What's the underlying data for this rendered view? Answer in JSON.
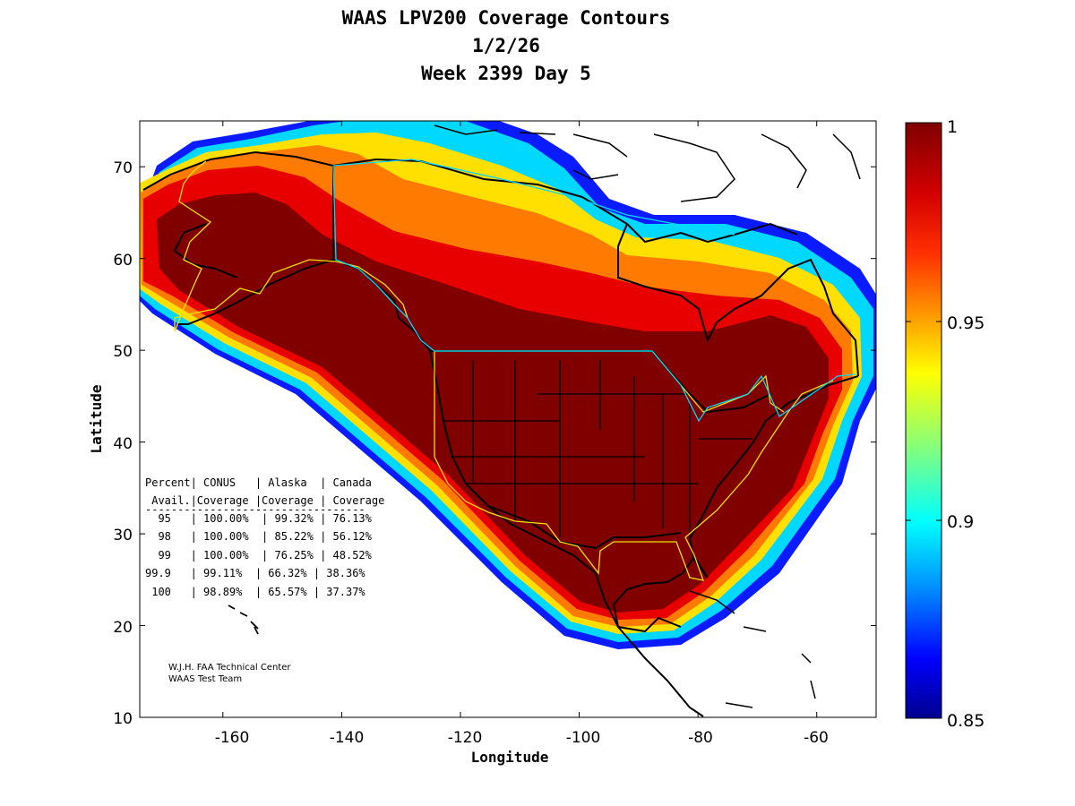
{
  "title": {
    "line1": "WAAS LPV200 Coverage Contours",
    "line2": "1/2/26",
    "line3": "Week 2399 Day 5"
  },
  "map": {
    "x_label": "Longitude",
    "y_label": "Latitude",
    "x_ticks": [
      "-160",
      "-140",
      "-120",
      "-100",
      "-80",
      "-60"
    ],
    "y_ticks": [
      "70",
      "60",
      "50",
      "40",
      "30",
      "20",
      "10"
    ],
    "lon_range": [
      -174,
      -50
    ],
    "lat_range": [
      10,
      75
    ],
    "colors": {
      "coverage_max": "#800000",
      "red": "#e00000",
      "orange": "#ff6a00",
      "yellow": "#ffe000",
      "cyan": "#00e0ff",
      "blue": "#0033ff",
      "navy": "#000080",
      "region_outline": "#f0e000",
      "canada_outline": "#00e0ff",
      "coastline": "#000000"
    }
  },
  "stats_table": {
    "header1": "Percent| CONUS   | Alaska  | Canada",
    "header2": " Avail.|Coverage |Coverage | Coverage",
    "rule": "----------------------------------",
    "rows": [
      "  95   | 100.00%  | 99.32% | 76.13%",
      "  98   | 100.00%  | 85.22% | 56.12%",
      "  99   | 100.00%  | 76.25% | 48.52%",
      "99.9   | 99.11%  | 66.32% | 38.36%",
      " 100   | 98.89%  | 65.57% | 37.37%"
    ]
  },
  "credit": {
    "line1": "W.J.H. FAA Technical Center",
    "line2": "WAAS Test Team"
  },
  "colorbar": {
    "labels": [
      "1",
      "0.95",
      "0.9",
      "0.85"
    ],
    "max": 1,
    "min": 0.85
  }
}
